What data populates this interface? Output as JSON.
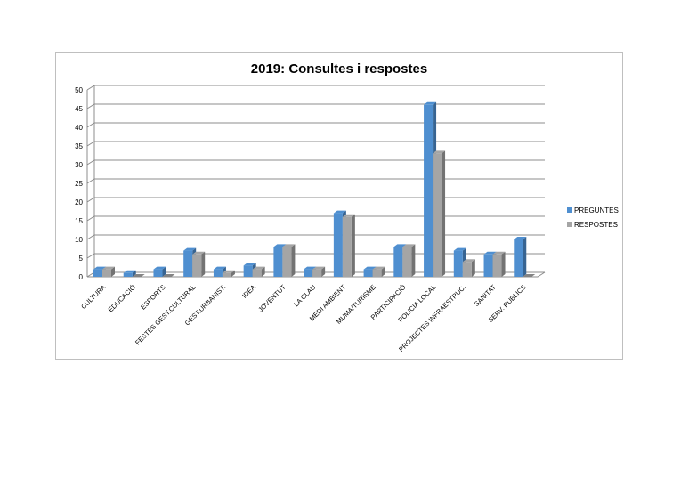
{
  "chart_data": {
    "type": "bar",
    "title": "2019:  Consultes i respostes",
    "xlabel": "",
    "ylabel": "",
    "ylim": [
      0,
      50
    ],
    "yticks": [
      0,
      5,
      10,
      15,
      20,
      25,
      30,
      35,
      40,
      45,
      50
    ],
    "grid": true,
    "legend_position": "right",
    "categories": [
      "CULTURA",
      "EDUCACIÓ",
      "ESPORTS",
      "FESTES GEST.CULTURAL",
      "GEST.URBANÍST.",
      "IDEA",
      "JOVENTUT",
      "LA CLAU",
      "MEDI AMBIENT",
      "MUMA/TURISME",
      "PARTICIPACIÓ",
      "POLICIA LOCAL",
      "PROJECTES INFRAESTRUC.",
      "SANITAT",
      "SERV. PÚBLICS"
    ],
    "series": [
      {
        "name": "PREGUNTES",
        "color": "#4f8fd0",
        "values": [
          2,
          1,
          2,
          7,
          2,
          3,
          8,
          2,
          17,
          2,
          8,
          46,
          7,
          6,
          10
        ]
      },
      {
        "name": "RESPOSTES",
        "color": "#a5a5a5",
        "values": [
          2,
          0,
          0,
          6,
          1,
          2,
          8,
          2,
          16,
          2,
          8,
          33,
          4,
          6,
          0
        ]
      }
    ]
  }
}
